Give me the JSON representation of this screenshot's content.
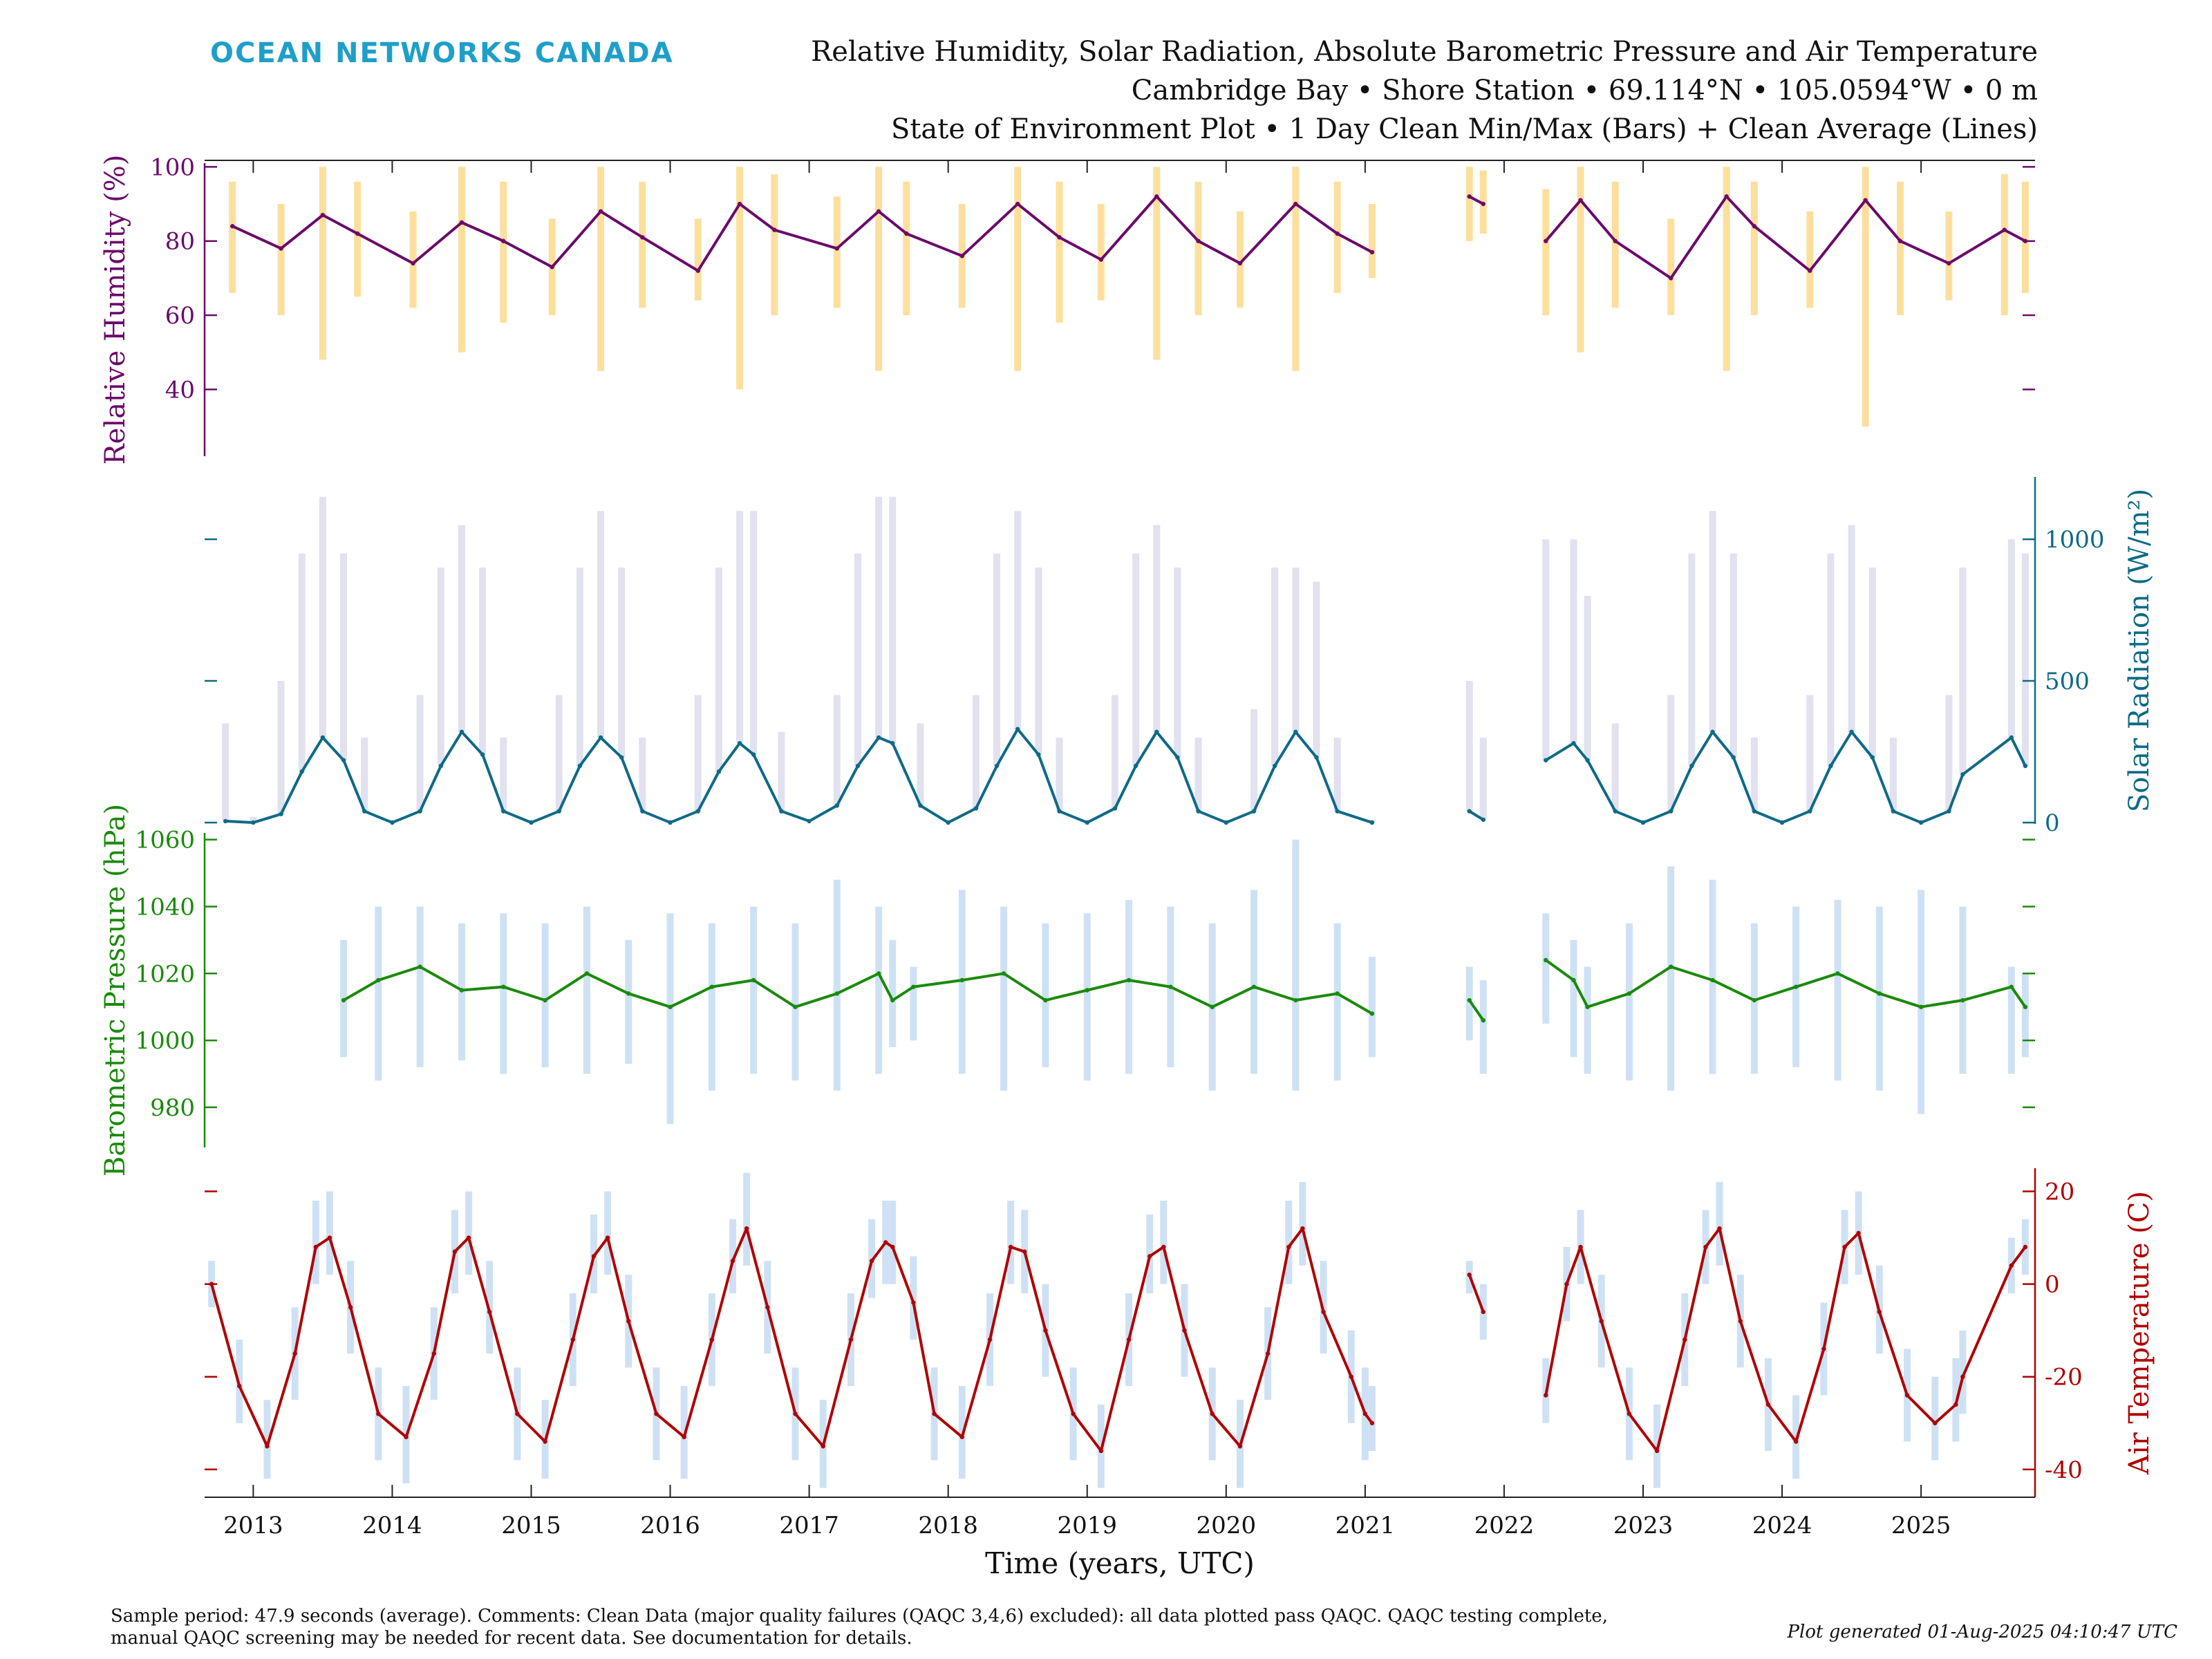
{
  "header": {
    "logo": "OCEAN NETWORKS CANADA",
    "title_lines": [
      "Relative Humidity, Solar Radiation, Absolute Barometric Pressure and Air Temperature",
      "Cambridge Bay • Shore Station • 69.114°N • 105.0594°W • 0 m",
      "State of Environment Plot • 1 Day Clean Min/Max (Bars) + Clean Average (Lines)"
    ]
  },
  "footer": {
    "note_line1": "Sample period: 47.9 seconds (average). Comments: Clean Data (major quality failures (QAQC 3,4,6) excluded): all data plotted pass QAQC. QAQC testing complete,",
    "note_line2": "manual QAQC screening may be needed for recent data. See documentation for details.",
    "generated": "Plot generated 01-Aug-2025 04:10:47 UTC"
  },
  "colors": {
    "logo": "#1f9fc8",
    "humidity": "#6b0a6b",
    "humidity_range": "#fdd98c",
    "solar": "#0e6a86",
    "solar_range": "#dcdcec",
    "pressure": "#1a8a0a",
    "pressure_range": "#c6dcf2",
    "temperature": "#b00000",
    "temperature_range": "#c6dcf2"
  },
  "chart_data": {
    "type": "line",
    "xlabel": "Time (years, UTC)",
    "xlim": [
      2012.65,
      2025.82
    ],
    "x_ticks": [
      2013,
      2014,
      2015,
      2016,
      2017,
      2018,
      2019,
      2020,
      2021,
      2022,
      2023,
      2024,
      2025
    ],
    "x_tick_labels": [
      "2013",
      "2014",
      "2015",
      "2016",
      "2017",
      "2018",
      "2019",
      "2020",
      "2021",
      "2022",
      "2023",
      "2024",
      "2025"
    ],
    "grid": false,
    "panels": [
      {
        "id": "humidity",
        "ylabel": "Relative Humidity (%)",
        "axis_side": "left",
        "ylim": [
          22,
          101
        ],
        "y_ticks": [
          40,
          60,
          80,
          100
        ],
        "y_tick_labels": [
          "40",
          "60",
          "80",
          "100"
        ],
        "x": [
          2012.85,
          2013.2,
          2013.5,
          2013.75,
          2014.15,
          2014.5,
          2014.8,
          2015.15,
          2015.5,
          2015.8,
          2016.2,
          2016.5,
          2016.75,
          2017.2,
          2017.5,
          2017.7,
          2018.1,
          2018.5,
          2018.8,
          2019.1,
          2019.5,
          2019.8,
          2020.1,
          2020.5,
          2020.8,
          2021.05,
          2021.75,
          2021.85,
          2022.3,
          2022.55,
          2022.8,
          2023.2,
          2023.6,
          2023.8,
          2024.2,
          2024.6,
          2024.85,
          2025.2,
          2025.6,
          2025.75
        ],
        "y": [
          84,
          78,
          87,
          82,
          74,
          85,
          80,
          73,
          88,
          81,
          72,
          90,
          83,
          78,
          88,
          82,
          76,
          90,
          81,
          75,
          92,
          80,
          74,
          90,
          82,
          77,
          92,
          90,
          80,
          91,
          80,
          70,
          92,
          84,
          72,
          91,
          80,
          74,
          83,
          80
        ],
        "y_min": [
          66,
          60,
          48,
          65,
          62,
          50,
          58,
          60,
          45,
          62,
          64,
          40,
          60,
          62,
          45,
          60,
          62,
          45,
          58,
          64,
          48,
          60,
          62,
          45,
          66,
          70,
          80,
          82,
          60,
          50,
          62,
          60,
          45,
          60,
          62,
          30,
          60,
          64,
          60,
          66
        ],
        "y_max": [
          96,
          90,
          100,
          96,
          88,
          100,
          96,
          86,
          100,
          96,
          86,
          100,
          98,
          92,
          100,
          96,
          90,
          100,
          96,
          90,
          100,
          96,
          88,
          100,
          96,
          90,
          100,
          99,
          94,
          100,
          96,
          86,
          100,
          96,
          88,
          100,
          96,
          88,
          98,
          96
        ],
        "gaps": [
          [
            2021.1,
            2021.7
          ],
          [
            2021.9,
            2022.25
          ]
        ]
      },
      {
        "id": "solar",
        "ylabel": "Solar Radiation (W/m²)",
        "axis_side": "right",
        "ylim": [
          -5,
          1220
        ],
        "y_ticks": [
          0,
          500,
          1000
        ],
        "y_tick_labels": [
          "0",
          "500",
          "1000"
        ],
        "x": [
          2012.8,
          2013.0,
          2013.2,
          2013.35,
          2013.5,
          2013.65,
          2013.8,
          2014.0,
          2014.2,
          2014.35,
          2014.5,
          2014.65,
          2014.8,
          2015.0,
          2015.2,
          2015.35,
          2015.5,
          2015.65,
          2015.8,
          2016.0,
          2016.2,
          2016.35,
          2016.5,
          2016.6,
          2016.8,
          2017.0,
          2017.2,
          2017.35,
          2017.5,
          2017.6,
          2017.8,
          2018.0,
          2018.2,
          2018.35,
          2018.5,
          2018.65,
          2018.8,
          2019.0,
          2019.2,
          2019.35,
          2019.5,
          2019.65,
          2019.8,
          2020.0,
          2020.2,
          2020.35,
          2020.5,
          2020.65,
          2020.8,
          2021.05,
          2021.75,
          2021.85,
          2022.3,
          2022.5,
          2022.6,
          2022.8,
          2023.0,
          2023.2,
          2023.35,
          2023.5,
          2023.65,
          2023.8,
          2024.0,
          2024.2,
          2024.35,
          2024.5,
          2024.65,
          2024.8,
          2025.0,
          2025.2,
          2025.3,
          2025.65,
          2025.75
        ],
        "y": [
          5,
          0,
          30,
          180,
          300,
          220,
          40,
          0,
          40,
          200,
          320,
          240,
          40,
          0,
          40,
          200,
          300,
          230,
          40,
          0,
          40,
          180,
          280,
          240,
          40,
          5,
          60,
          200,
          300,
          280,
          60,
          0,
          50,
          200,
          330,
          240,
          40,
          0,
          50,
          200,
          320,
          230,
          40,
          0,
          40,
          200,
          320,
          230,
          40,
          0,
          40,
          10,
          220,
          280,
          220,
          40,
          0,
          40,
          200,
          320,
          230,
          40,
          0,
          40,
          200,
          320,
          230,
          40,
          0,
          40,
          170,
          300,
          200
        ],
        "y_max": [
          350,
          20,
          500,
          950,
          1150,
          950,
          300,
          10,
          450,
          900,
          1050,
          900,
          300,
          10,
          450,
          900,
          1100,
          900,
          300,
          10,
          450,
          900,
          1100,
          1100,
          320,
          10,
          450,
          950,
          1150,
          1150,
          350,
          10,
          450,
          950,
          1100,
          900,
          300,
          10,
          450,
          950,
          1050,
          900,
          300,
          10,
          400,
          900,
          900,
          850,
          300,
          10,
          500,
          300,
          1000,
          1000,
          800,
          350,
          10,
          450,
          950,
          1100,
          950,
          300,
          10,
          450,
          950,
          1050,
          900,
          300,
          10,
          450,
          900,
          1000,
          950
        ],
        "gaps": [
          [
            2021.1,
            2021.7
          ],
          [
            2021.9,
            2022.25
          ]
        ]
      },
      {
        "id": "pressure",
        "ylabel": "Barometric Pressure (hPa)",
        "axis_side": "left",
        "ylim": [
          968,
          1062
        ],
        "y_ticks": [
          980,
          1000,
          1020,
          1040,
          1060
        ],
        "y_tick_labels": [
          "980",
          "1000",
          "1020",
          "1040",
          "1060"
        ],
        "x": [
          2013.65,
          2013.9,
          2014.2,
          2014.5,
          2014.8,
          2015.1,
          2015.4,
          2015.7,
          2016.0,
          2016.3,
          2016.6,
          2016.9,
          2017.2,
          2017.5,
          2017.6,
          2017.75,
          2018.1,
          2018.4,
          2018.7,
          2019.0,
          2019.3,
          2019.6,
          2019.9,
          2020.2,
          2020.5,
          2020.8,
          2021.05,
          2021.75,
          2021.85,
          2022.3,
          2022.5,
          2022.6,
          2022.9,
          2023.2,
          2023.5,
          2023.8,
          2024.1,
          2024.4,
          2024.7,
          2025.0,
          2025.3,
          2025.65,
          2025.75
        ],
        "y": [
          1012,
          1018,
          1022,
          1015,
          1016,
          1012,
          1020,
          1014,
          1010,
          1016,
          1018,
          1010,
          1014,
          1020,
          1012,
          1016,
          1018,
          1020,
          1012,
          1015,
          1018,
          1016,
          1010,
          1016,
          1012,
          1014,
          1008,
          1012,
          1006,
          1024,
          1018,
          1010,
          1014,
          1022,
          1018,
          1012,
          1016,
          1020,
          1014,
          1010,
          1012,
          1016,
          1010
        ],
        "y_min": [
          995,
          988,
          992,
          994,
          990,
          992,
          990,
          993,
          975,
          985,
          990,
          988,
          985,
          990,
          998,
          1000,
          990,
          985,
          992,
          988,
          990,
          992,
          985,
          990,
          985,
          988,
          995,
          1000,
          990,
          1005,
          995,
          990,
          988,
          985,
          990,
          990,
          992,
          988,
          985,
          978,
          990,
          990,
          995
        ],
        "y_max": [
          1030,
          1040,
          1040,
          1035,
          1038,
          1035,
          1040,
          1030,
          1038,
          1035,
          1040,
          1035,
          1048,
          1040,
          1030,
          1022,
          1045,
          1040,
          1035,
          1038,
          1042,
          1040,
          1035,
          1045,
          1060,
          1035,
          1025,
          1022,
          1018,
          1038,
          1030,
          1022,
          1035,
          1052,
          1048,
          1035,
          1040,
          1042,
          1040,
          1045,
          1040,
          1022,
          1020
        ],
        "gaps": [
          [
            2021.1,
            2021.7
          ],
          [
            2021.9,
            2022.25
          ]
        ]
      },
      {
        "id": "temperature",
        "ylabel": "Air Temperature (C)",
        "axis_side": "right",
        "ylim": [
          -46,
          25
        ],
        "y_ticks": [
          -40,
          -20,
          0,
          20
        ],
        "y_tick_labels": [
          "-40",
          "-20",
          "0",
          "20"
        ],
        "x": [
          2012.7,
          2012.9,
          2013.1,
          2013.3,
          2013.45,
          2013.55,
          2013.7,
          2013.9,
          2014.1,
          2014.3,
          2014.45,
          2014.55,
          2014.7,
          2014.9,
          2015.1,
          2015.3,
          2015.45,
          2015.55,
          2015.7,
          2015.9,
          2016.1,
          2016.3,
          2016.45,
          2016.55,
          2016.7,
          2016.9,
          2017.1,
          2017.3,
          2017.45,
          2017.55,
          2017.6,
          2017.75,
          2017.9,
          2018.1,
          2018.3,
          2018.45,
          2018.55,
          2018.7,
          2018.9,
          2019.1,
          2019.3,
          2019.45,
          2019.55,
          2019.7,
          2019.9,
          2020.1,
          2020.3,
          2020.45,
          2020.55,
          2020.7,
          2020.9,
          2021.0,
          2021.05,
          2021.75,
          2021.85,
          2022.3,
          2022.45,
          2022.55,
          2022.7,
          2022.9,
          2023.1,
          2023.3,
          2023.45,
          2023.55,
          2023.7,
          2023.9,
          2024.1,
          2024.3,
          2024.45,
          2024.55,
          2024.7,
          2024.9,
          2025.1,
          2025.25,
          2025.3,
          2025.65,
          2025.75
        ],
        "y": [
          0,
          -22,
          -35,
          -15,
          8,
          10,
          -5,
          -28,
          -33,
          -15,
          7,
          10,
          -6,
          -28,
          -34,
          -12,
          6,
          10,
          -8,
          -28,
          -33,
          -12,
          5,
          12,
          -5,
          -28,
          -35,
          -12,
          5,
          9,
          8,
          -4,
          -28,
          -33,
          -12,
          8,
          7,
          -10,
          -28,
          -36,
          -12,
          6,
          8,
          -10,
          -28,
          -35,
          -15,
          8,
          12,
          -6,
          -20,
          -28,
          -30,
          2,
          -6,
          -24,
          0,
          8,
          -8,
          -28,
          -36,
          -12,
          8,
          12,
          -8,
          -26,
          -34,
          -14,
          8,
          11,
          -6,
          -24,
          -30,
          -26,
          -20,
          4,
          8
        ],
        "y_min": [
          -5,
          -30,
          -42,
          -25,
          0,
          2,
          -15,
          -38,
          -43,
          -25,
          -2,
          2,
          -15,
          -38,
          -42,
          -22,
          -2,
          2,
          -18,
          -38,
          -42,
          -22,
          -2,
          4,
          -15,
          -38,
          -44,
          -22,
          -3,
          0,
          0,
          -12,
          -38,
          -42,
          -22,
          0,
          -2,
          -20,
          -38,
          -44,
          -22,
          -2,
          0,
          -20,
          -38,
          -44,
          -25,
          0,
          4,
          -15,
          -30,
          -38,
          -36,
          -2,
          -12,
          -30,
          -8,
          0,
          -18,
          -38,
          -44,
          -22,
          0,
          4,
          -18,
          -36,
          -42,
          -24,
          0,
          2,
          -15,
          -34,
          -38,
          -34,
          -28,
          -2,
          2
        ],
        "y_max": [
          5,
          -12,
          -25,
          -5,
          18,
          20,
          5,
          -18,
          -22,
          -5,
          16,
          20,
          5,
          -18,
          -25,
          -2,
          15,
          20,
          2,
          -18,
          -22,
          -2,
          14,
          24,
          5,
          -18,
          -25,
          -2,
          14,
          18,
          18,
          6,
          -18,
          -22,
          -2,
          18,
          16,
          0,
          -18,
          -26,
          -2,
          15,
          18,
          0,
          -18,
          -25,
          -5,
          18,
          22,
          5,
          -10,
          -18,
          -22,
          5,
          0,
          -16,
          8,
          16,
          2,
          -18,
          -26,
          -2,
          16,
          22,
          2,
          -16,
          -24,
          -4,
          16,
          20,
          4,
          -14,
          -20,
          -16,
          -10,
          10,
          14
        ],
        "gaps": [
          [
            2021.1,
            2021.7
          ],
          [
            2021.9,
            2022.25
          ]
        ]
      }
    ]
  }
}
